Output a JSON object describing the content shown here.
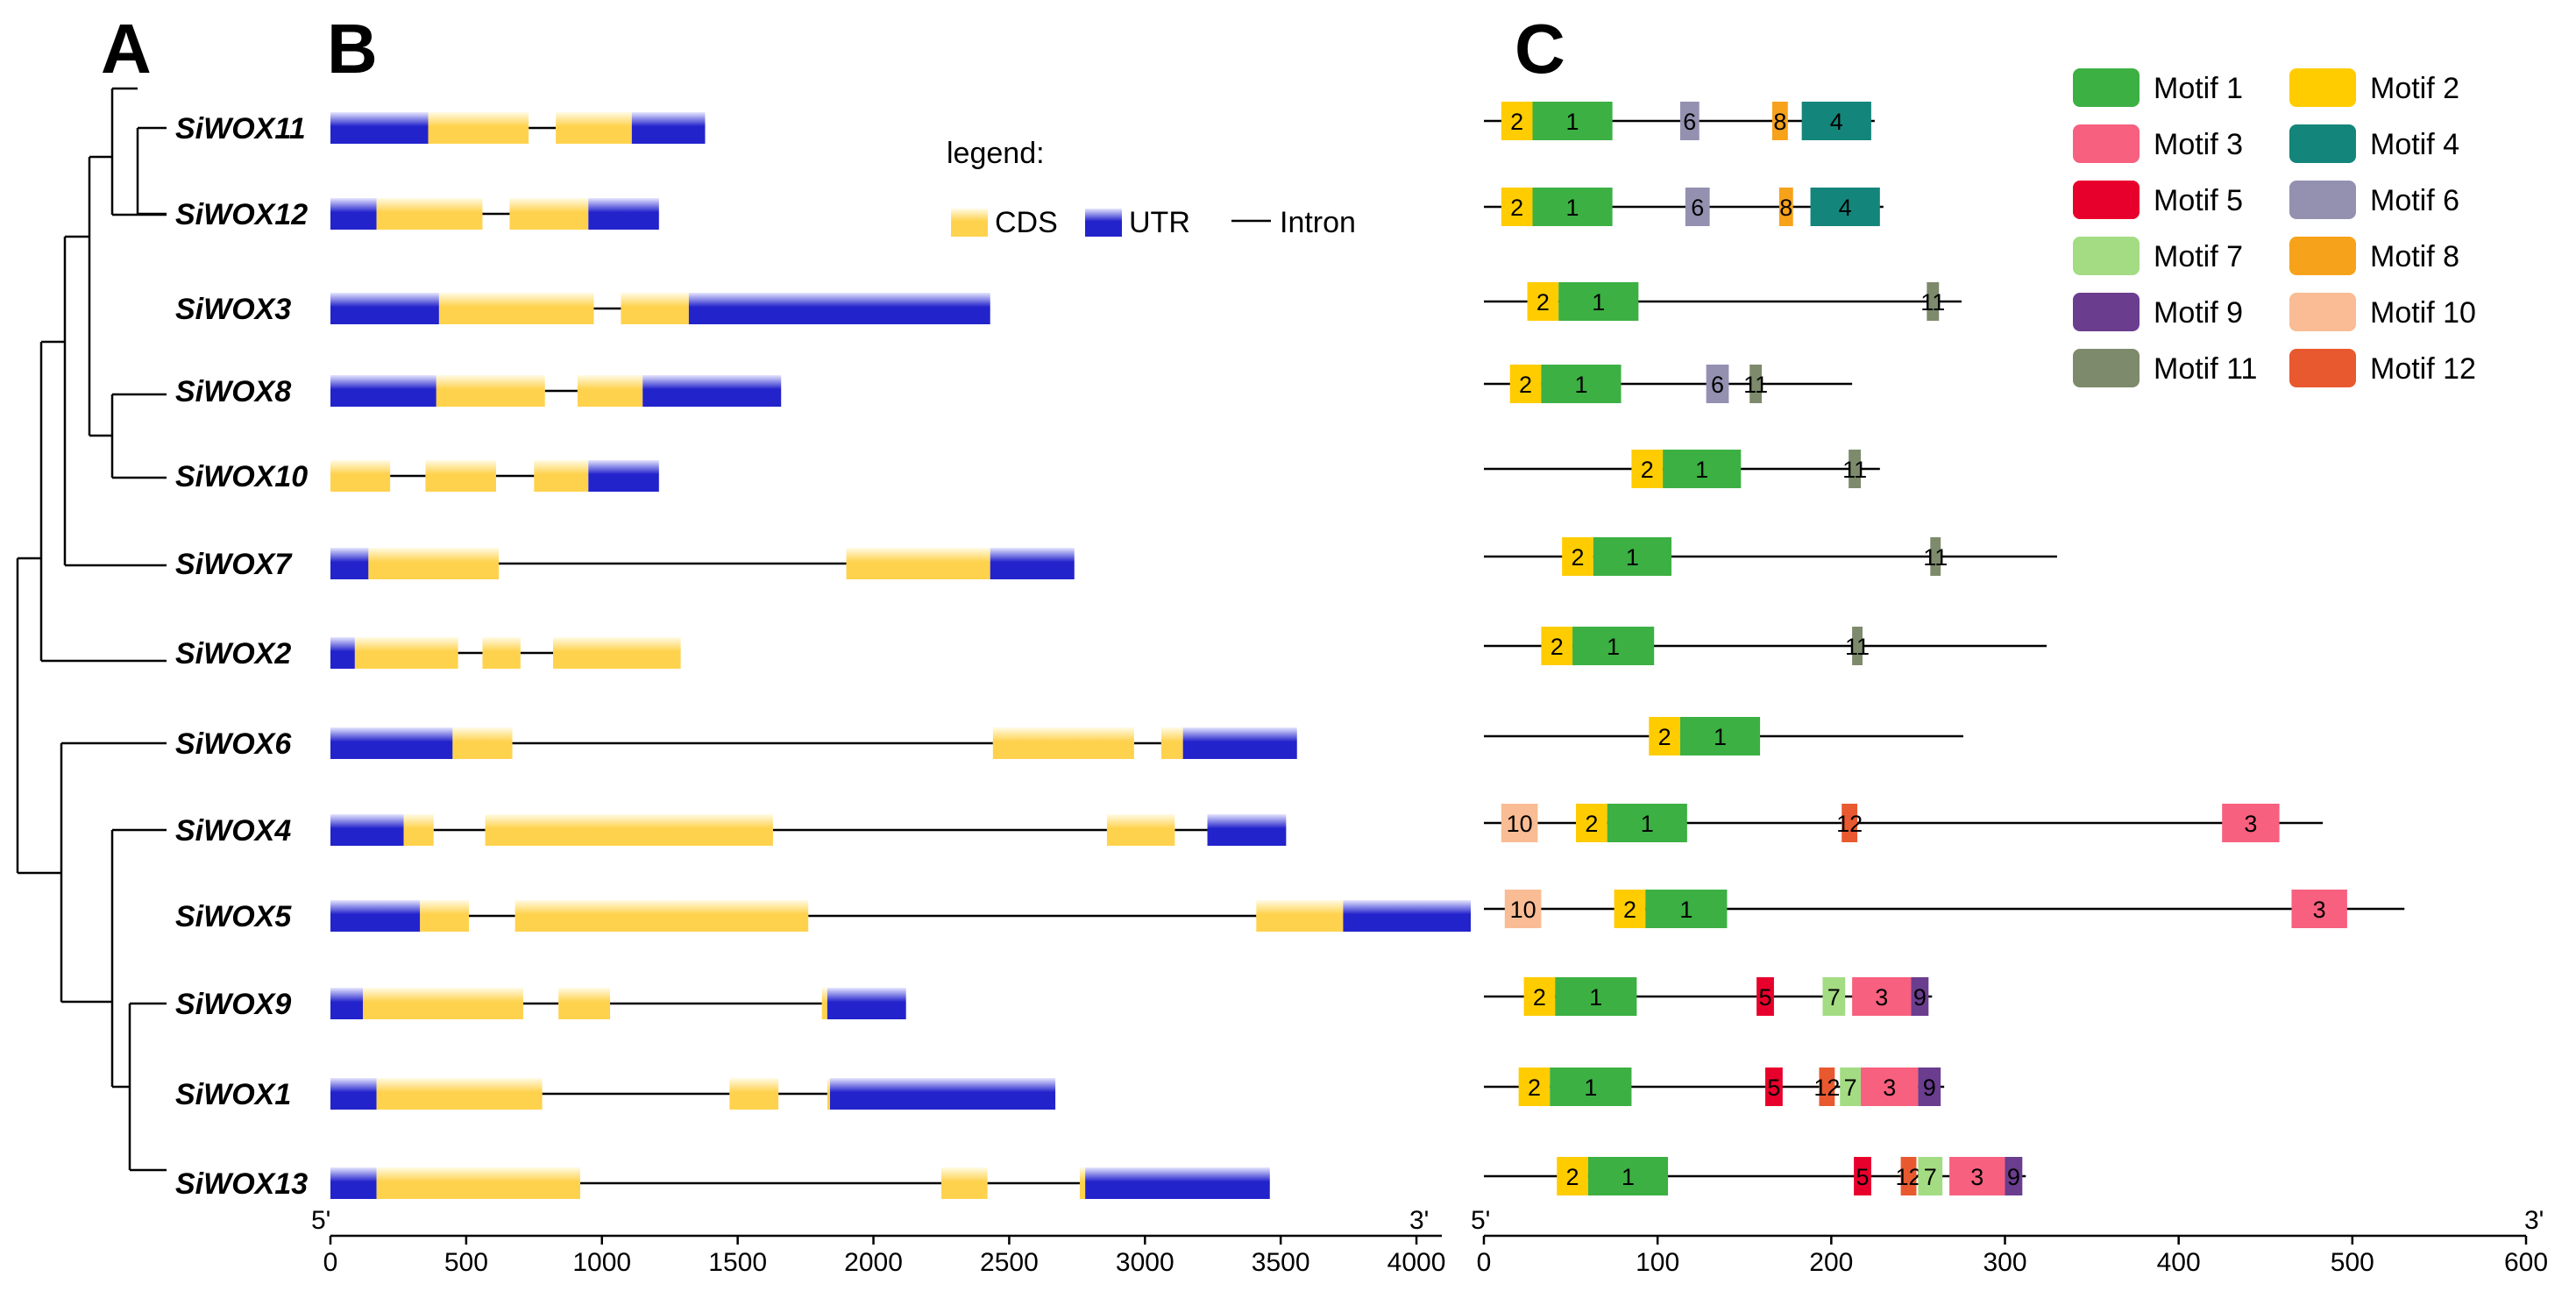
{
  "panels": {
    "a": "A",
    "b": "B",
    "c": "C"
  },
  "genes": [
    "SiWOX11",
    "SiWOX12",
    "SiWOX3",
    "SiWOX8",
    "SiWOX10",
    "SiWOX7",
    "SiWOX2",
    "SiWOX6",
    "SiWOX4",
    "SiWOX5",
    "SiWOX9",
    "SiWOX1",
    "SiWOX13"
  ],
  "gene_structure": {
    "legend": {
      "title": "legend:",
      "cds": "CDS",
      "utr": "UTR",
      "intron": "Intron"
    },
    "colors": {
      "cds": "#ffd24d",
      "utr": "#2323cc",
      "intron": "#000000"
    },
    "axis": {
      "min": 0,
      "max": 4200,
      "ticks": [
        0,
        500,
        1000,
        1500,
        2000,
        2500,
        3000,
        3500,
        4000
      ],
      "tick_labels": [
        "0",
        "500",
        "1000",
        "1500",
        "2000",
        "2500",
        "3000",
        "3500",
        "4000"
      ],
      "five_prime": "5'",
      "three_prime": "3'"
    },
    "structures": [
      {
        "gene": "SiWOX11",
        "segments": [
          [
            "UTR",
            0,
            360
          ],
          [
            "CDS",
            360,
            730
          ],
          [
            "CDS",
            830,
            1110
          ],
          [
            "UTR",
            1110,
            1380
          ]
        ]
      },
      {
        "gene": "SiWOX12",
        "segments": [
          [
            "UTR",
            0,
            170
          ],
          [
            "CDS",
            170,
            560
          ],
          [
            "CDS",
            660,
            950
          ],
          [
            "UTR",
            950,
            1210
          ]
        ]
      },
      {
        "gene": "SiWOX3",
        "segments": [
          [
            "UTR",
            0,
            400
          ],
          [
            "CDS",
            400,
            970
          ],
          [
            "CDS",
            1070,
            1320
          ],
          [
            "UTR",
            1320,
            2430
          ]
        ]
      },
      {
        "gene": "SiWOX8",
        "segments": [
          [
            "UTR",
            0,
            390
          ],
          [
            "CDS",
            390,
            790
          ],
          [
            "CDS",
            910,
            1150
          ],
          [
            "UTR",
            1150,
            1660
          ]
        ]
      },
      {
        "gene": "SiWOX10",
        "segments": [
          [
            "CDS",
            0,
            220
          ],
          [
            "CDS",
            350,
            610
          ],
          [
            "CDS",
            750,
            950
          ],
          [
            "UTR",
            950,
            1210
          ]
        ]
      },
      {
        "gene": "SiWOX7",
        "segments": [
          [
            "UTR",
            0,
            140
          ],
          [
            "CDS",
            140,
            620
          ],
          [
            "CDS",
            1900,
            2430
          ],
          [
            "UTR",
            2430,
            2740
          ]
        ]
      },
      {
        "gene": "SiWOX2",
        "segments": [
          [
            "UTR",
            0,
            90
          ],
          [
            "CDS",
            90,
            470
          ],
          [
            "CDS",
            560,
            700
          ],
          [
            "CDS",
            820,
            1290
          ]
        ]
      },
      {
        "gene": "SiWOX6",
        "segments": [
          [
            "UTR",
            0,
            450
          ],
          [
            "CDS",
            450,
            670
          ],
          [
            "CDS",
            2440,
            2960
          ],
          [
            "CDS",
            3060,
            3140
          ],
          [
            "UTR",
            3140,
            3560
          ]
        ]
      },
      {
        "gene": "SiWOX4",
        "segments": [
          [
            "UTR",
            0,
            270
          ],
          [
            "CDS",
            270,
            380
          ],
          [
            "CDS",
            570,
            1630
          ],
          [
            "CDS",
            2860,
            3110
          ],
          [
            "UTR",
            3230,
            3520
          ]
        ]
      },
      {
        "gene": "SiWOX5",
        "segments": [
          [
            "UTR",
            0,
            330
          ],
          [
            "CDS",
            330,
            510
          ],
          [
            "CDS",
            680,
            1760
          ],
          [
            "CDS",
            3410,
            3730
          ],
          [
            "UTR",
            3730,
            4200
          ]
        ]
      },
      {
        "gene": "SiWOX9",
        "segments": [
          [
            "UTR",
            0,
            120
          ],
          [
            "CDS",
            120,
            710
          ],
          [
            "CDS",
            840,
            1030
          ],
          [
            "CDS",
            1810,
            1830
          ],
          [
            "UTR",
            1830,
            2120
          ]
        ]
      },
      {
        "gene": "SiWOX1",
        "segments": [
          [
            "UTR",
            0,
            170
          ],
          [
            "CDS",
            170,
            780
          ],
          [
            "CDS",
            1470,
            1650
          ],
          [
            "CDS",
            1830,
            1840
          ],
          [
            "UTR",
            1840,
            2670
          ]
        ]
      },
      {
        "gene": "SiWOX13",
        "segments": [
          [
            "UTR",
            0,
            170
          ],
          [
            "CDS",
            170,
            920
          ],
          [
            "CDS",
            2250,
            2420
          ],
          [
            "CDS",
            2760,
            2780
          ],
          [
            "UTR",
            2780,
            3460
          ]
        ]
      }
    ]
  },
  "motif_structure": {
    "axis": {
      "min": 0,
      "max": 600,
      "ticks": [
        0,
        100,
        200,
        300,
        400,
        500,
        600
      ],
      "tick_labels": [
        "0",
        "100",
        "200",
        "300",
        "400",
        "500",
        "600"
      ],
      "five_prime": "5'",
      "three_prime": "3'"
    },
    "legend": [
      {
        "id": 1,
        "label": "Motif 1",
        "color": "#3cb043"
      },
      {
        "id": 2,
        "label": "Motif 2",
        "color": "#ffcc00"
      },
      {
        "id": 3,
        "label": "Motif 3",
        "color": "#f7607f"
      },
      {
        "id": 4,
        "label": "Motif 4",
        "color": "#14857a"
      },
      {
        "id": 5,
        "label": "Motif 5",
        "color": "#e8002c"
      },
      {
        "id": 6,
        "label": "Motif 6",
        "color": "#9490b0"
      },
      {
        "id": 7,
        "label": "Motif 7",
        "color": "#a3dc83"
      },
      {
        "id": 8,
        "label": "Motif 8",
        "color": "#f7a21b"
      },
      {
        "id": 9,
        "label": "Motif 9",
        "color": "#6a3d8f"
      },
      {
        "id": 10,
        "label": "Motif 10",
        "color": "#f9bc94"
      },
      {
        "id": 11,
        "label": "Motif 11",
        "color": "#7d8a6c"
      },
      {
        "id": 12,
        "label": "Motif 12",
        "color": "#e8592f"
      }
    ],
    "proteins": [
      {
        "gene": "SiWOX11",
        "length": 225,
        "motifs": [
          [
            2,
            10,
            28
          ],
          [
            1,
            28,
            74
          ],
          [
            6,
            113,
            124
          ],
          [
            8,
            166,
            175
          ],
          [
            4,
            183,
            223
          ]
        ]
      },
      {
        "gene": "SiWOX12",
        "length": 230,
        "motifs": [
          [
            2,
            10,
            28
          ],
          [
            1,
            28,
            74
          ],
          [
            6,
            116,
            130
          ],
          [
            8,
            170,
            178
          ],
          [
            4,
            188,
            228
          ]
        ]
      },
      {
        "gene": "SiWOX3",
        "length": 275,
        "motifs": [
          [
            2,
            25,
            43
          ],
          [
            1,
            43,
            89
          ],
          [
            11,
            255,
            262
          ]
        ]
      },
      {
        "gene": "SiWOX8",
        "length": 212,
        "motifs": [
          [
            2,
            15,
            33
          ],
          [
            1,
            33,
            79
          ],
          [
            6,
            128,
            141
          ],
          [
            11,
            153,
            160
          ]
        ]
      },
      {
        "gene": "SiWOX10",
        "length": 228,
        "motifs": [
          [
            2,
            85,
            103
          ],
          [
            1,
            103,
            148
          ],
          [
            11,
            210,
            217
          ]
        ]
      },
      {
        "gene": "SiWOX7",
        "length": 330,
        "motifs": [
          [
            2,
            45,
            63
          ],
          [
            1,
            63,
            108
          ],
          [
            11,
            257,
            263
          ]
        ]
      },
      {
        "gene": "SiWOX2",
        "length": 324,
        "motifs": [
          [
            2,
            33,
            51
          ],
          [
            1,
            51,
            98
          ],
          [
            11,
            212,
            218
          ]
        ]
      },
      {
        "gene": "SiWOX6",
        "length": 276,
        "motifs": [
          [
            2,
            95,
            113
          ],
          [
            1,
            113,
            159
          ]
        ]
      },
      {
        "gene": "SiWOX4",
        "length": 483,
        "motifs": [
          [
            10,
            10,
            31
          ],
          [
            2,
            53,
            71
          ],
          [
            1,
            71,
            117
          ],
          [
            12,
            206,
            215
          ],
          [
            3,
            425,
            458
          ]
        ]
      },
      {
        "gene": "SiWOX5",
        "length": 530,
        "motifs": [
          [
            10,
            12,
            33
          ],
          [
            2,
            75,
            93
          ],
          [
            1,
            93,
            140
          ],
          [
            3,
            465,
            497
          ]
        ]
      },
      {
        "gene": "SiWOX9",
        "length": 258,
        "motifs": [
          [
            2,
            23,
            41
          ],
          [
            1,
            41,
            88
          ],
          [
            5,
            157,
            167
          ],
          [
            7,
            195,
            208
          ],
          [
            3,
            212,
            246
          ],
          [
            9,
            246,
            256
          ]
        ]
      },
      {
        "gene": "SiWOX1",
        "length": 265,
        "motifs": [
          [
            2,
            20,
            38
          ],
          [
            1,
            38,
            85
          ],
          [
            5,
            162,
            172
          ],
          [
            12,
            193,
            202
          ],
          [
            7,
            205,
            217
          ],
          [
            3,
            217,
            250
          ],
          [
            9,
            250,
            263
          ]
        ]
      },
      {
        "gene": "SiWOX13",
        "length": 312,
        "motifs": [
          [
            2,
            42,
            60
          ],
          [
            1,
            60,
            106
          ],
          [
            5,
            213,
            223
          ],
          [
            12,
            240,
            249
          ],
          [
            7,
            250,
            264
          ],
          [
            3,
            268,
            300
          ],
          [
            9,
            300,
            310
          ]
        ]
      }
    ]
  }
}
